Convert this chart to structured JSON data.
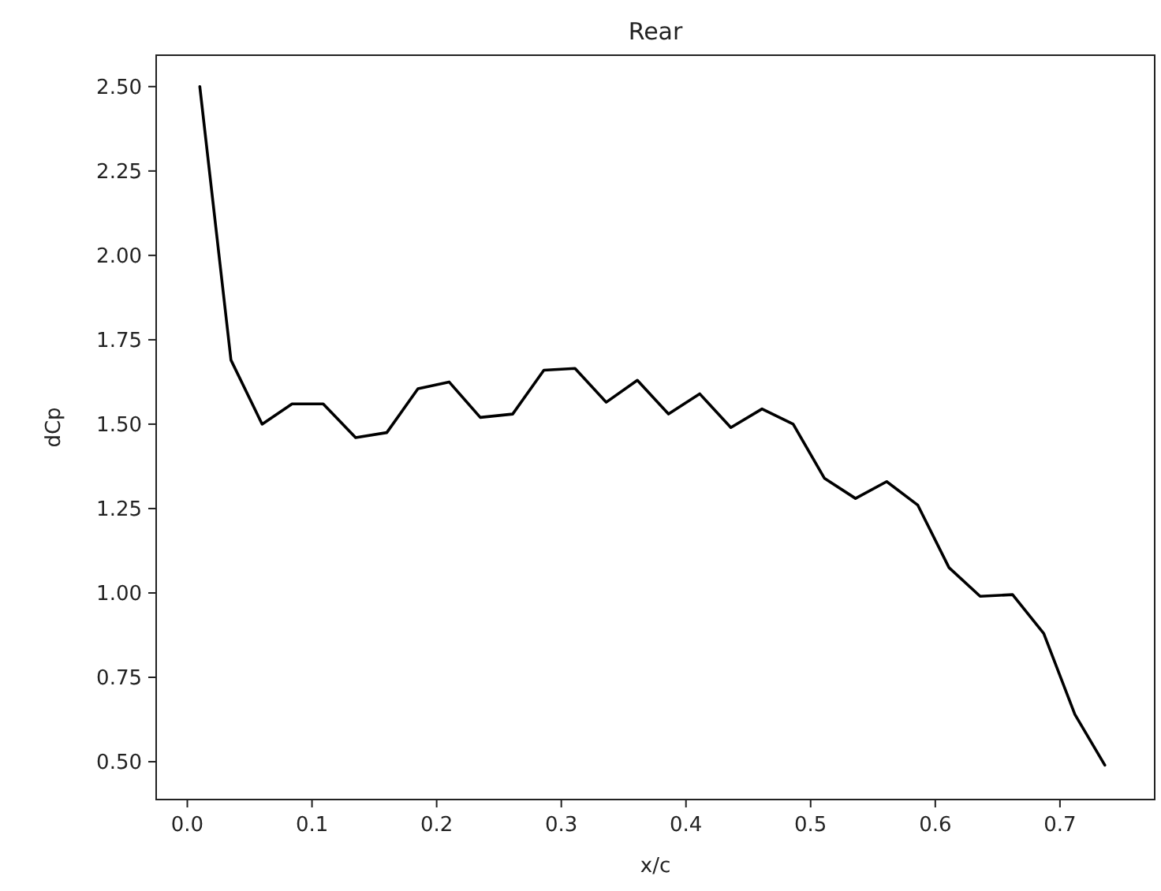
{
  "chart_data": {
    "type": "line",
    "title": "Rear",
    "xlabel": "x/c",
    "ylabel": "dCp",
    "x": [
      0.01,
      0.035,
      0.06,
      0.084,
      0.109,
      0.135,
      0.16,
      0.185,
      0.21,
      0.235,
      0.261,
      0.286,
      0.311,
      0.336,
      0.361,
      0.386,
      0.411,
      0.436,
      0.461,
      0.486,
      0.511,
      0.536,
      0.561,
      0.586,
      0.611,
      0.636,
      0.662,
      0.687,
      0.712,
      0.736
    ],
    "series": [
      {
        "color": "#000000",
        "values": [
          2.5,
          1.69,
          1.5,
          1.56,
          1.56,
          1.46,
          1.475,
          1.605,
          1.625,
          1.52,
          1.53,
          1.66,
          1.665,
          1.565,
          1.63,
          1.53,
          1.59,
          1.49,
          1.545,
          1.5,
          1.34,
          1.28,
          1.33,
          1.26,
          1.075,
          0.99,
          0.995,
          0.88,
          0.64,
          0.49
        ]
      }
    ],
    "xlim": [
      -0.025,
      0.776
    ],
    "ylim": [
      0.388,
      2.593
    ],
    "xticks": [
      {
        "value": 0,
        "label": "0.0"
      },
      0.1,
      0.2,
      0.3,
      0.4,
      0.5,
      0.6,
      0.7
    ],
    "yticks": [
      {
        "value": 0.5,
        "label": "0.50"
      },
      {
        "value": 0.75,
        "label": "0.75"
      },
      {
        "value": 1.0,
        "label": "1.00"
      },
      {
        "value": 1.25,
        "label": "1.25"
      },
      {
        "value": 1.5,
        "label": "1.50"
      },
      {
        "value": 1.75,
        "label": "1.75"
      },
      {
        "value": 2.0,
        "label": "2.00"
      },
      {
        "value": 2.25,
        "label": "2.25"
      },
      {
        "value": 2.5,
        "label": "2.50"
      }
    ],
    "grid": false
  }
}
